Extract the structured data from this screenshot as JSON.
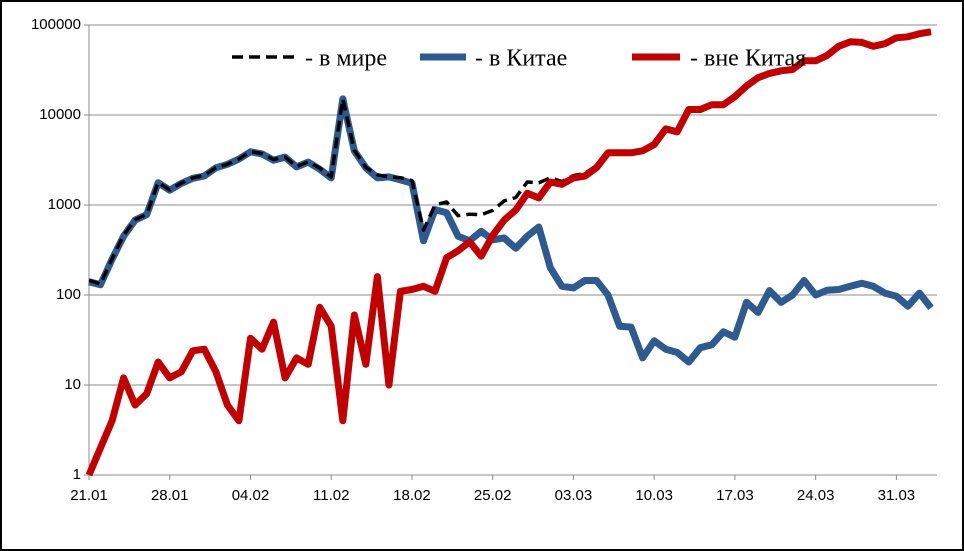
{
  "chart_data": {
    "type": "line",
    "log_y": true,
    "grid": true,
    "legend": "top",
    "categories": [
      "21.01",
      null,
      null,
      null,
      null,
      null,
      null,
      "28.01",
      null,
      null,
      null,
      null,
      null,
      null,
      "04.02",
      null,
      null,
      null,
      null,
      null,
      null,
      "11.02",
      null,
      null,
      null,
      null,
      null,
      null,
      "18.02",
      null,
      null,
      null,
      null,
      null,
      null,
      "25.02",
      null,
      null,
      null,
      null,
      null,
      null,
      "03.03",
      null,
      null,
      null,
      null,
      null,
      null,
      "10.03",
      null,
      null,
      null,
      null,
      null,
      null,
      "17.03",
      null,
      null,
      null,
      null,
      null,
      null,
      "24.03",
      null,
      null,
      null,
      null,
      null,
      null,
      "31.03",
      null,
      null,
      null
    ],
    "ylim": [
      1,
      100000
    ],
    "yticks": [
      1,
      10,
      100,
      1000,
      10000,
      100000
    ],
    "series": [
      {
        "name": "-  в Китае",
        "color": "#2e5a8f",
        "dash": false,
        "values": [
          140,
          130,
          250,
          450,
          680,
          780,
          1770,
          1460,
          1740,
          1980,
          2100,
          2590,
          2830,
          3240,
          3900,
          3700,
          3150,
          3400,
          2650,
          3000,
          2500,
          2000,
          15100,
          4000,
          2600,
          2000,
          2050,
          1900,
          1750,
          400,
          890,
          820,
          450,
          400,
          510,
          410,
          430,
          330,
          450,
          570,
          200,
          125,
          120,
          145,
          145,
          100,
          45,
          44,
          20,
          31,
          25,
          23,
          18,
          26,
          28,
          39,
          34,
          83,
          64,
          112,
          83,
          100,
          145,
          100,
          113,
          115,
          125,
          135,
          125,
          105,
          97,
          75,
          105,
          72
        ]
      },
      {
        "name": "- в мире",
        "color": "#000000",
        "dash": true,
        "values": [
          146,
          132,
          254,
          462,
          686,
          788,
          1788,
          1472,
          1754,
          2004,
          2125,
          2604,
          2836,
          3244,
          3933,
          3725,
          3200,
          3412,
          2670,
          3017,
          2573,
          2045,
          15104,
          4060,
          2617,
          2160,
          2060,
          2010,
          1865,
          525,
          1000,
          1080,
          760,
          790,
          780,
          870,
          1110,
          1210,
          1800,
          1770,
          2000,
          1825,
          2120,
          2245,
          2745,
          3900,
          3845,
          3844,
          4020,
          4731,
          7025,
          6523,
          11518,
          11526,
          13028,
          13039,
          16034,
          21083,
          26064,
          29112,
          31083,
          32100,
          40145,
          40100,
          46113,
          58115,
          65125,
          64135,
          58125,
          62105,
          72097,
          74075,
          80105,
          84072
        ]
      },
      {
        "name": "- вне Китая",
        "color": "#c00000",
        "dash": false,
        "values": [
          1,
          2,
          4,
          12,
          6,
          8,
          18,
          12,
          14,
          24,
          25,
          14,
          6,
          4,
          33,
          25,
          50,
          12,
          20,
          17,
          73,
          45,
          4,
          60,
          17,
          160,
          10,
          110,
          115,
          125,
          110,
          260,
          310,
          390,
          270,
          460,
          680,
          880,
          1350,
          1200,
          1800,
          1700,
          2000,
          2100,
          2600,
          3800,
          3800,
          3800,
          4000,
          4700,
          7000,
          6500,
          11500,
          11500,
          13000,
          13000,
          16000,
          21000,
          26000,
          29000,
          31000,
          32000,
          40000,
          40000,
          46000,
          58000,
          65000,
          64000,
          58000,
          62000,
          72000,
          74000,
          80000,
          84000
        ]
      }
    ],
    "draw_order": [
      0,
      1,
      2
    ]
  }
}
